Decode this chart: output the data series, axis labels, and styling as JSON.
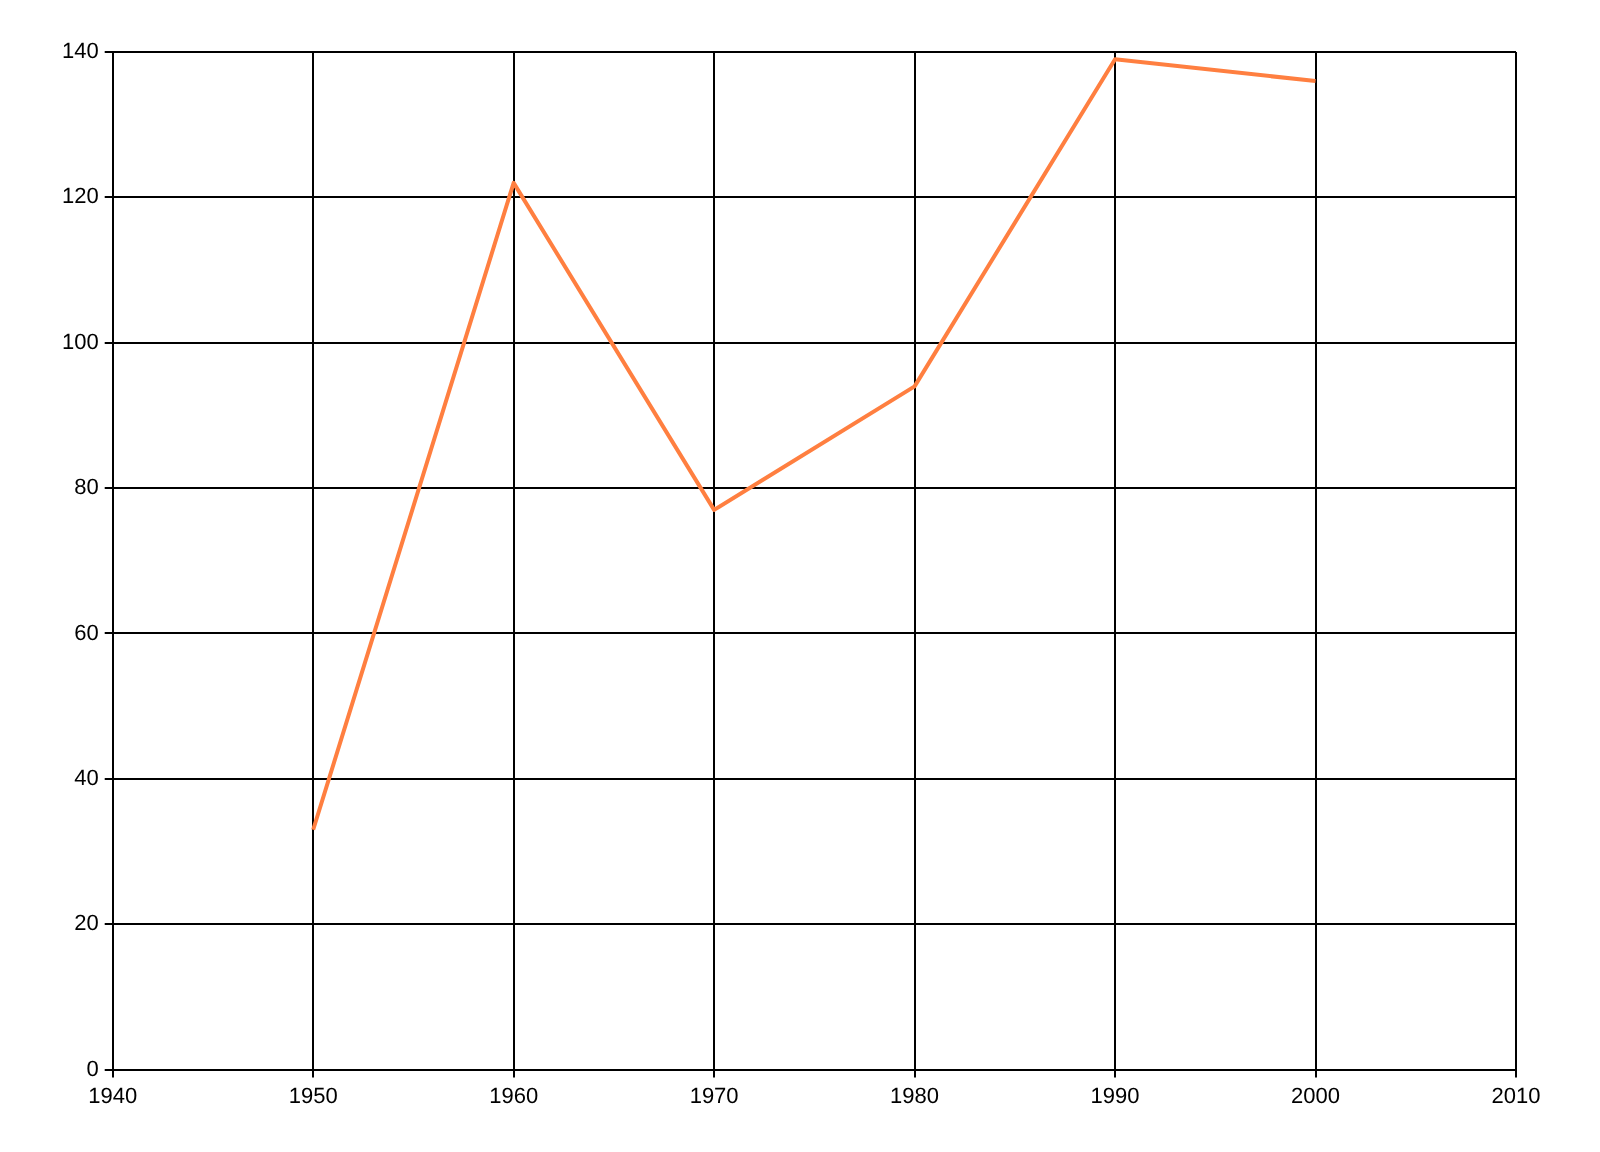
{
  "chart_data": {
    "type": "line",
    "x": [
      1950,
      1960,
      1970,
      1980,
      1990,
      2000
    ],
    "series": [
      {
        "color": "#ff7f40",
        "values": [
          33,
          122,
          77,
          94,
          139,
          136
        ]
      }
    ],
    "xlim": [
      1940,
      2010
    ],
    "xticks": [
      1940,
      1950,
      1960,
      1970,
      1980,
      1990,
      2000,
      2010
    ],
    "ylim": [
      0,
      140
    ],
    "yticks": [
      0,
      20,
      40,
      60,
      80,
      100,
      120,
      140
    ],
    "grid": true,
    "legend": false,
    "marker": "none",
    "line_style": "solid"
  }
}
